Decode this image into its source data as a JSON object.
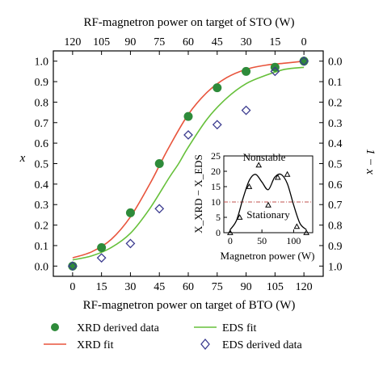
{
  "chart_data": [
    {
      "type": "scatter",
      "xlabel": "RF-magnetron power on target of BTO (W)",
      "x2label": "RF-magnetron power on target of STO (W)",
      "ylabel": "x",
      "y2label": "1 − x",
      "xlim": [
        -10,
        130
      ],
      "ylim": [
        -0.05,
        1.05
      ],
      "x_ticks": [
        0,
        15,
        30,
        45,
        60,
        75,
        90,
        105,
        120
      ],
      "x2_ticks": [
        120,
        105,
        90,
        75,
        60,
        45,
        30,
        15,
        0
      ],
      "y_ticks": [
        0.0,
        0.1,
        0.2,
        0.3,
        0.4,
        0.5,
        0.6,
        0.7,
        0.8,
        0.9,
        1.0
      ],
      "y2_ticks": [
        1.0,
        0.9,
        0.8,
        0.7,
        0.6,
        0.5,
        0.4,
        0.3,
        0.2,
        0.1,
        0.0
      ],
      "series": [
        {
          "name": "XRD derived data",
          "kind": "scatter",
          "marker": "filled-circle",
          "color": "#2e8b3a",
          "x": [
            0,
            15,
            30,
            45,
            60,
            75,
            90,
            105,
            120
          ],
          "y": [
            0.0,
            0.09,
            0.26,
            0.5,
            0.73,
            0.87,
            0.95,
            0.97,
            1.0
          ]
        },
        {
          "name": "EDS derived data",
          "kind": "scatter",
          "marker": "open-diamond",
          "color": "#3b3b8f",
          "x": [
            0,
            15,
            30,
            45,
            60,
            75,
            90,
            105,
            120
          ],
          "y": [
            0.0,
            0.04,
            0.11,
            0.28,
            0.64,
            0.69,
            0.76,
            0.95,
            1.0
          ]
        },
        {
          "name": "XRD fit",
          "kind": "line",
          "color": "#e8543c",
          "x": [
            0,
            10,
            20,
            30,
            40,
            45,
            50,
            60,
            70,
            80,
            90,
            100,
            110,
            120
          ],
          "y": [
            0.04,
            0.07,
            0.13,
            0.24,
            0.4,
            0.49,
            0.58,
            0.74,
            0.85,
            0.92,
            0.96,
            0.98,
            0.99,
            1.0
          ]
        },
        {
          "name": "EDS fit",
          "kind": "line",
          "color": "#66c03a",
          "x": [
            0,
            10,
            20,
            30,
            40,
            50,
            55,
            60,
            70,
            80,
            90,
            100,
            110,
            120
          ],
          "y": [
            0.03,
            0.05,
            0.09,
            0.16,
            0.28,
            0.43,
            0.5,
            0.58,
            0.72,
            0.82,
            0.89,
            0.93,
            0.96,
            0.97
          ]
        }
      ],
      "legend": {
        "placement": "bottom"
      }
    },
    {
      "type": "line",
      "xlabel": "Magnetron power (W)",
      "ylabel": "X_XRD − X_EDS",
      "xlim": [
        -10,
        130
      ],
      "ylim": [
        0,
        25
      ],
      "x_ticks": [
        0,
        50,
        100
      ],
      "y_ticks": [
        0,
        5,
        10,
        15,
        20,
        25
      ],
      "points": {
        "x": [
          0,
          15,
          30,
          45,
          60,
          75,
          90,
          105,
          120
        ],
        "y": [
          0,
          5,
          15,
          22,
          9,
          18,
          19,
          2,
          0
        ]
      },
      "smooth_curve": {
        "x": [
          0,
          10,
          20,
          30,
          40,
          50,
          60,
          70,
          80,
          90,
          100,
          110,
          120
        ],
        "y": [
          1,
          4,
          11,
          17,
          19,
          16.5,
          14,
          18,
          19,
          16,
          9,
          3,
          1
        ]
      },
      "threshold": 10,
      "annotations": [
        "Nonstable",
        "Stationary"
      ]
    }
  ],
  "legend": [
    {
      "label": "XRD derived data",
      "symbol": "filled-circle",
      "color": "#2e8b3a"
    },
    {
      "label": "EDS fit",
      "symbol": "line",
      "color": "#66c03a"
    },
    {
      "label": "XRD fit",
      "symbol": "line",
      "color": "#e8543c"
    },
    {
      "label": "EDS derived data",
      "symbol": "open-diamond",
      "color": "#3b3b8f"
    }
  ],
  "colors": {
    "inset_threshold": "#c0504d"
  }
}
